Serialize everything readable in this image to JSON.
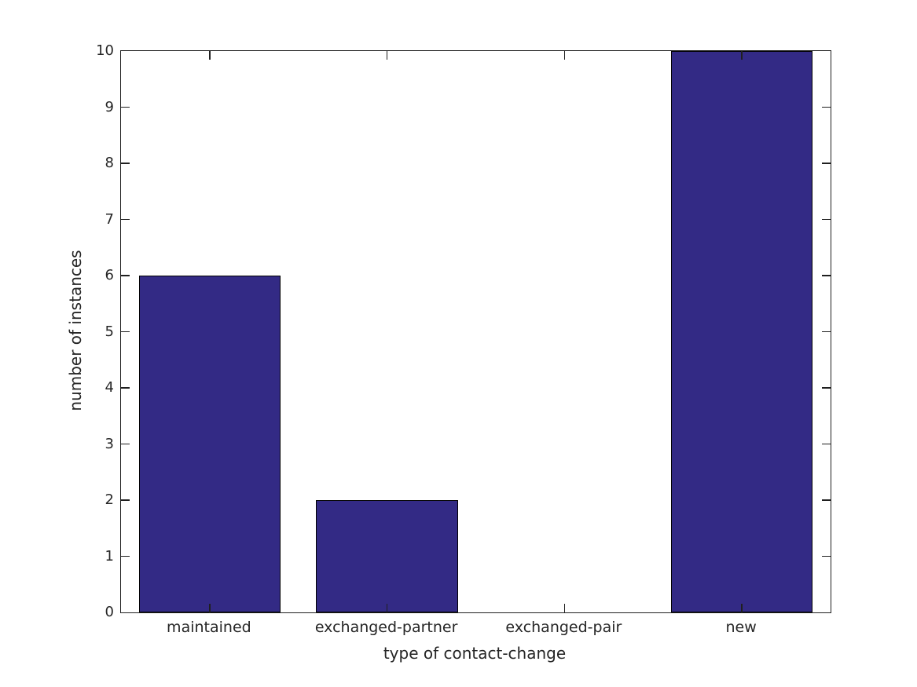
{
  "chart_data": {
    "type": "bar",
    "title": "",
    "categories": [
      "maintained",
      "exchanged-partner",
      "exchanged-pair",
      "new"
    ],
    "values": [
      6,
      2,
      0,
      10
    ],
    "xlabel": "type of contact-change",
    "ylabel": "number of instances",
    "ylim": [
      0,
      10
    ],
    "yticks": [
      0,
      1,
      2,
      3,
      4,
      5,
      6,
      7,
      8,
      9,
      10
    ],
    "ytick_labels": [
      "0",
      "1",
      "2",
      "3",
      "4",
      "5",
      "6",
      "7",
      "8",
      "9",
      "10"
    ],
    "bar_width_fraction": 0.8,
    "bar_color": "#332A85",
    "bar_edge_color": "#000000",
    "axis_color": "#1f1f1f",
    "text_color": "#262626",
    "grid": false,
    "legend_position": "none",
    "box": true,
    "tick_direction": "in"
  }
}
